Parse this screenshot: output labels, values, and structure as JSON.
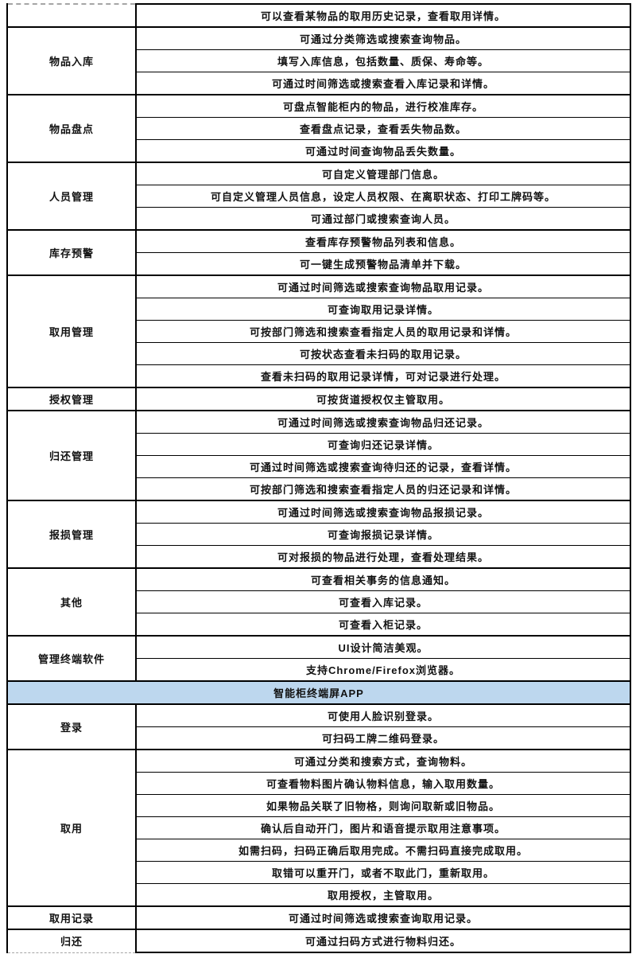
{
  "colors": {
    "section_header_bg": "#bdd7ee",
    "border": "#000000",
    "text": "#111111",
    "page_break_dash": "#a6a6a6"
  },
  "table": {
    "columns": [
      "category",
      "feature"
    ],
    "blocks": [
      {
        "type": "group",
        "label": "",
        "rows": [
          "可以查看某物品的取用历史记录，查看取用详情。"
        ]
      },
      {
        "type": "group",
        "label": "物品入库",
        "rows": [
          "可通过分类筛选或搜索查询物品。",
          "填写入库信息，包括数量、质保、寿命等。",
          "可通过时间筛选或搜索查看入库记录和详情。"
        ]
      },
      {
        "type": "group",
        "label": "物品盘点",
        "rows": [
          "可盘点智能柜内的物品，进行校准库存。",
          "查看盘点记录，查看丢失物品数。",
          "可通过时间查询物品丢失数量。"
        ]
      },
      {
        "type": "group",
        "label": "人员管理",
        "rows": [
          "可自定义管理部门信息。",
          "可自定义管理人员信息，设定人员权限、在离职状态、打印工牌码等。",
          "可通过部门或搜索查询人员。"
        ]
      },
      {
        "type": "group",
        "label": "库存预警",
        "rows": [
          "查看库存预警物品列表和信息。",
          "可一键生成预警物品清单并下载。"
        ]
      },
      {
        "type": "group",
        "label": "取用管理",
        "rows": [
          "可通过时间筛选或搜索查询物品取用记录。",
          "可查询取用记录详情。",
          "可按部门筛选和搜索查看指定人员的取用记录和详情。",
          "可按状态查看未扫码的取用记录。",
          "查看未扫码的取用记录详情，可对记录进行处理。"
        ]
      },
      {
        "type": "group",
        "label": "授权管理",
        "rows": [
          "可按货道授权仅主管取用。"
        ]
      },
      {
        "type": "group",
        "label": "归还管理",
        "rows": [
          "可通过时间筛选或搜索查询物品归还记录。",
          "可查询归还记录详情。",
          "可通过时间筛选或搜索查询待归还的记录，查看详情。",
          "可按部门筛选和搜索查看指定人员的归还记录和详情。"
        ]
      },
      {
        "type": "group",
        "label": "报损管理",
        "rows": [
          "可通过时间筛选或搜索查询物品报损记录。",
          "可查询报损记录详情。",
          "可对报损的物品进行处理，查看处理结果。"
        ]
      },
      {
        "type": "group",
        "label": "其他",
        "rows": [
          "可查看相关事务的信息通知。",
          "可查看入库记录。",
          "可查看入柜记录。"
        ]
      },
      {
        "type": "group",
        "label": "管理终端软件",
        "rows": [
          "UI设计简洁美观。",
          "支持Chrome/Firefox浏览器。"
        ]
      },
      {
        "type": "section",
        "label": "智能柜终端屏APP"
      },
      {
        "type": "group",
        "label": "登录",
        "rows": [
          "可使用人脸识别登录。",
          "可扫码工牌二维码登录。"
        ]
      },
      {
        "type": "group",
        "label": "取用",
        "rows": [
          "可通过分类和搜索方式，查询物料。",
          "可查看物料图片确认物料信息，输入取用数量。",
          "如果物品关联了旧物格，则询问取新或旧物品。",
          "确认后自动开门，图片和语音提示取用注意事项。",
          "如需扫码，扫码正确后取用完成。不需扫码直接完成取用。",
          "取错可以重开门，或者不取此门，重新取用。",
          "取用授权，主管取用。"
        ]
      },
      {
        "type": "group",
        "label": "取用记录",
        "rows": [
          "可通过时间筛选或搜索查询取用记录。"
        ]
      },
      {
        "type": "group",
        "label": "归还",
        "rows": [
          "可通过扫码方式进行物料归还。"
        ]
      }
    ]
  }
}
